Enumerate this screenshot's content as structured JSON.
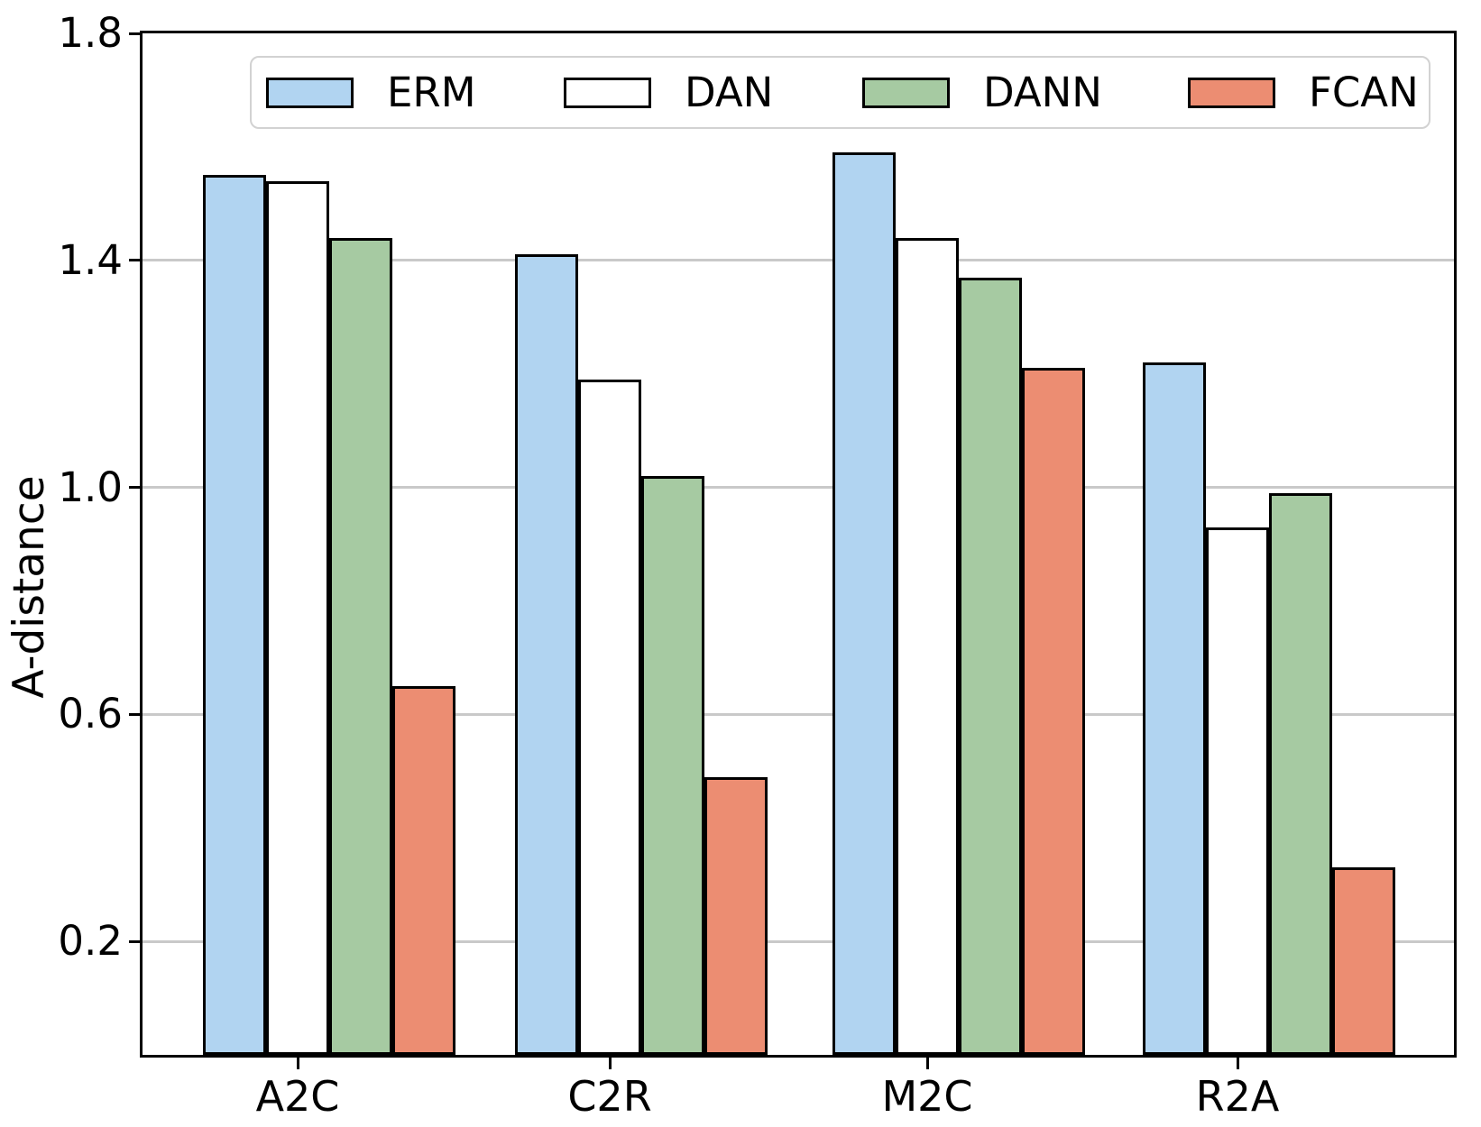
{
  "chart_data": {
    "type": "bar",
    "title": "",
    "xlabel": "",
    "ylabel": "A-distance",
    "categories": [
      "A2C",
      "C2R",
      "M2C",
      "R2A"
    ],
    "series": [
      {
        "name": "ERM",
        "color": "#b1d4f1",
        "values": [
          1.55,
          1.41,
          1.59,
          1.22
        ]
      },
      {
        "name": "DAN",
        "color": "#ffffff",
        "values": [
          1.54,
          1.19,
          1.44,
          0.93
        ]
      },
      {
        "name": "DANN",
        "color": "#a6caa2",
        "values": [
          1.44,
          1.02,
          1.37,
          0.99
        ]
      },
      {
        "name": "FCAN",
        "color": "#ec8d72",
        "values": [
          0.65,
          0.49,
          1.21,
          0.33
        ]
      }
    ],
    "ylim": [
      0,
      1.8
    ],
    "yticks": [
      0.2,
      0.6,
      1.0,
      1.4,
      1.8
    ],
    "ytick_labels": [
      "0.2",
      "0.6",
      "1.0",
      "1.4",
      "1.8"
    ],
    "grid": true,
    "bar_edge_color": "#000000",
    "grid_color": "#c9c9c9",
    "legend_position": "upper center",
    "legend_labels": [
      "ERM",
      "DAN",
      "DANN",
      "FCAN"
    ]
  }
}
